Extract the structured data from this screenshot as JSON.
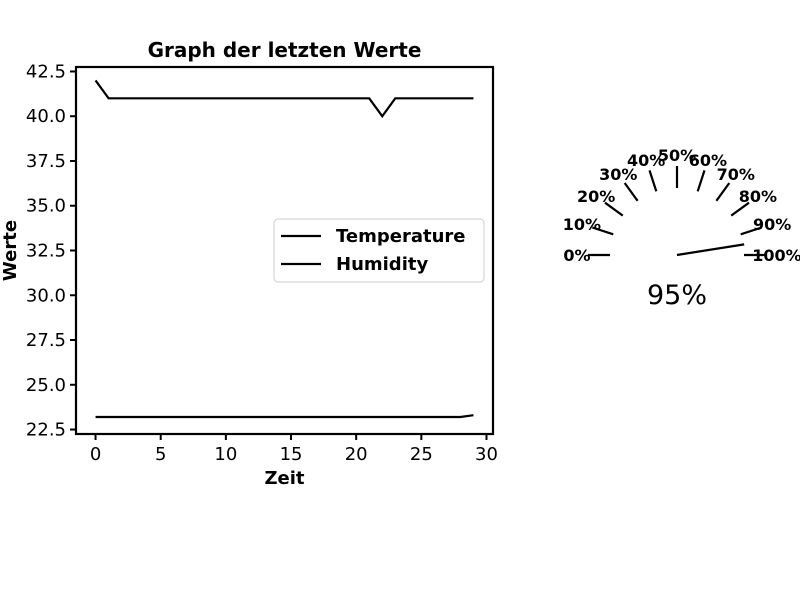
{
  "chart_data": [
    {
      "type": "line",
      "title": "Graph der letzten Werte",
      "xlabel": "Zeit",
      "ylabel": "Werte",
      "xlim": [
        -1.5,
        30.5
      ],
      "ylim": [
        22.25,
        42.75
      ],
      "xticks": [
        0,
        5,
        10,
        15,
        20,
        25,
        30
      ],
      "xtick_labels": [
        "0",
        "5",
        "10",
        "15",
        "20",
        "25",
        "30"
      ],
      "yticks": [
        22.5,
        25.0,
        27.5,
        30.0,
        32.5,
        35.0,
        37.5,
        40.0,
        42.5
      ],
      "ytick_labels": [
        "22.5",
        "25.0",
        "27.5",
        "30.0",
        "32.5",
        "35.0",
        "37.5",
        "40.0",
        "42.5"
      ],
      "grid": false,
      "legend_placement": "center-right",
      "series": [
        {
          "name": "Temperature",
          "color": "#000000",
          "x": [
            0,
            1,
            2,
            3,
            4,
            5,
            6,
            7,
            8,
            9,
            10,
            11,
            12,
            13,
            14,
            15,
            16,
            17,
            18,
            19,
            20,
            21,
            22,
            23,
            24,
            25,
            26,
            27,
            28,
            29
          ],
          "y": [
            23.2,
            23.2,
            23.2,
            23.2,
            23.2,
            23.2,
            23.2,
            23.2,
            23.2,
            23.2,
            23.2,
            23.2,
            23.2,
            23.2,
            23.2,
            23.2,
            23.2,
            23.2,
            23.2,
            23.2,
            23.2,
            23.2,
            23.2,
            23.2,
            23.2,
            23.2,
            23.2,
            23.2,
            23.2,
            23.3
          ]
        },
        {
          "name": "Humidity",
          "color": "#000000",
          "x": [
            0,
            1,
            2,
            3,
            4,
            5,
            6,
            7,
            8,
            9,
            10,
            11,
            12,
            13,
            14,
            15,
            16,
            17,
            18,
            19,
            20,
            21,
            22,
            23,
            24,
            25,
            26,
            27,
            28,
            29
          ],
          "y": [
            42,
            41,
            41,
            41,
            41,
            41,
            41,
            41,
            41,
            41,
            41,
            41,
            41,
            41,
            41,
            41,
            41,
            41,
            41,
            41,
            41,
            41,
            40,
            41,
            41,
            41,
            41,
            41,
            41,
            41
          ]
        }
      ]
    },
    {
      "type": "gauge",
      "tick_values": [
        0,
        10,
        20,
        30,
        40,
        50,
        60,
        70,
        80,
        90,
        100
      ],
      "tick_labels": [
        "0%",
        "10%",
        "20%",
        "30%",
        "40%",
        "50%",
        "60%",
        "70%",
        "80%",
        "90%",
        "100%"
      ],
      "value": 95,
      "value_label": "95%"
    }
  ]
}
